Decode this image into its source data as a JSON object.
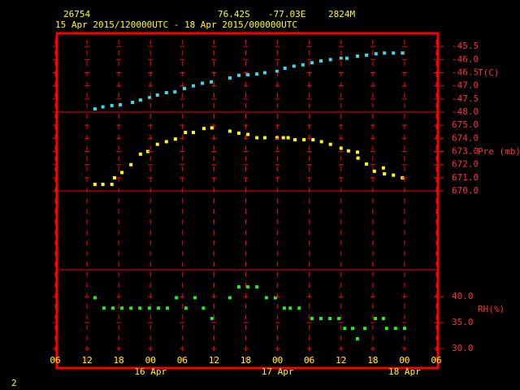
{
  "header": {
    "station": "26754",
    "latitude": "76.42S",
    "longitude": "-77.03E",
    "elevation": "2824M",
    "period": "15 Apr 2015/120000UTC - 18 Apr 2015/000000UTC"
  },
  "footer": "2",
  "x_axis": {
    "xlim": [
      6,
      78
    ],
    "xticks": [
      {
        "value": 6,
        "label": "06"
      },
      {
        "value": 12,
        "label": "12"
      },
      {
        "value": 18,
        "label": "18"
      },
      {
        "value": 24,
        "label": "00"
      },
      {
        "value": 30,
        "label": "06"
      },
      {
        "value": 36,
        "label": "12"
      },
      {
        "value": 42,
        "label": "18"
      },
      {
        "value": 48,
        "label": "00"
      },
      {
        "value": 54,
        "label": "06"
      },
      {
        "value": 60,
        "label": "12"
      },
      {
        "value": 66,
        "label": "18"
      },
      {
        "value": 72,
        "label": "00"
      },
      {
        "value": 78,
        "label": "06"
      }
    ],
    "date_labels": [
      {
        "value": 24,
        "label": "16 Apr"
      },
      {
        "value": 48,
        "label": "17 Apr"
      },
      {
        "value": 72,
        "label": "18 Apr"
      }
    ]
  },
  "chart_data": [
    {
      "type": "scatter",
      "ylabel": "T(C)",
      "color": "#33ddee",
      "ylim": [
        -48,
        -45
      ],
      "yticks": [
        -45.5,
        {
          "value": -46,
          "label": "-46.0"
        },
        -46.5,
        {
          "value": -47,
          "label": "-47.0"
        },
        -47.5,
        {
          "value": -48,
          "label": "-48.0"
        }
      ],
      "x": [
        13.5,
        15,
        16.7,
        18.3,
        20.6,
        22.1,
        23.8,
        25.3,
        27,
        28.6,
        30.4,
        32.1,
        33.8,
        35.5,
        39,
        40.7,
        42.4,
        44.1,
        45.6,
        47.9,
        49.4,
        51.1,
        52.8,
        54.5,
        56.2,
        58,
        60,
        61.1,
        63.1,
        64.8,
        66.6,
        68.2,
        69.9,
        71.6
      ],
      "values": [
        -47.88,
        -47.8,
        -47.75,
        -47.72,
        -47.63,
        -47.54,
        -47.45,
        -47.35,
        -47.26,
        -47.23,
        -47.1,
        -47.0,
        -46.9,
        -46.85,
        -46.7,
        -46.6,
        -46.58,
        -46.55,
        -46.5,
        -46.45,
        -46.33,
        -46.25,
        -46.2,
        -46.12,
        -46.05,
        -46.0,
        -45.95,
        -45.95,
        -45.87,
        -45.83,
        -45.78,
        -45.75,
        -45.75,
        -45.75
      ]
    },
    {
      "type": "scatter",
      "ylabel": "Pre (mb)",
      "color": "#ffff00",
      "ylim": [
        670,
        676
      ],
      "yticks": [
        {
          "value": 675,
          "label": "675.0"
        },
        {
          "value": 674,
          "label": "674.0"
        },
        {
          "value": 673,
          "label": "673.0"
        },
        {
          "value": 672,
          "label": "672.0"
        },
        {
          "value": 671,
          "label": "671.0"
        },
        {
          "value": 670,
          "label": "670.0"
        }
      ],
      "x": [
        13.5,
        15,
        16.7,
        17.2,
        18.6,
        20.3,
        22.1,
        23.5,
        25.3,
        27,
        28.7,
        30.6,
        32.1,
        34.1,
        35.6,
        39,
        40.7,
        42.4,
        44.1,
        45.6,
        47.9,
        49.1,
        50,
        51.3,
        53,
        54.7,
        56.3,
        58,
        60,
        61.4,
        63.1,
        63.2,
        64.8,
        66.3,
        68,
        68.2,
        69.9,
        71.6
      ],
      "values": [
        670.5,
        670.5,
        670.5,
        671.0,
        671.4,
        672.0,
        672.8,
        673.0,
        673.55,
        673.75,
        673.95,
        674.45,
        674.45,
        674.75,
        674.8,
        674.55,
        674.4,
        674.3,
        674.05,
        674.05,
        674.05,
        674.05,
        674.05,
        673.9,
        673.9,
        673.9,
        673.75,
        673.55,
        673.25,
        673.05,
        672.95,
        672.5,
        672.05,
        671.5,
        671.75,
        671.3,
        671.2,
        671.0
      ]
    },
    {
      "type": "scatter",
      "ylabel": "RH(%)",
      "color": "#22ee22",
      "ylim": [
        26.25,
        45.2
      ],
      "yticks": [
        {
          "value": 40,
          "label": "40.0"
        },
        {
          "value": 35,
          "label": "35.0"
        },
        {
          "value": 30,
          "label": "30.0"
        }
      ],
      "x": [
        13.5,
        15.2,
        16.9,
        18.6,
        20.3,
        22,
        23.8,
        25.5,
        27.2,
        28.9,
        30.7,
        32.4,
        34,
        35.6,
        39,
        40.7,
        42.4,
        44.1,
        45.9,
        47.6,
        49.3,
        50.4,
        52.1,
        54.5,
        56.2,
        57.9,
        59.6,
        60.7,
        62.2,
        63.1,
        64.5,
        66.5,
        68,
        68.6,
        70.3,
        72
      ],
      "values": [
        39.8,
        37.8,
        37.8,
        37.8,
        37.8,
        37.8,
        37.8,
        37.8,
        37.8,
        39.8,
        37.8,
        39.8,
        37.8,
        35.8,
        39.8,
        41.9,
        41.9,
        41.9,
        39.8,
        39.8,
        37.8,
        37.8,
        37.8,
        35.8,
        35.8,
        35.8,
        35.8,
        33.9,
        33.9,
        31.9,
        33.9,
        35.8,
        35.8,
        33.9,
        33.9,
        33.9
      ]
    }
  ]
}
